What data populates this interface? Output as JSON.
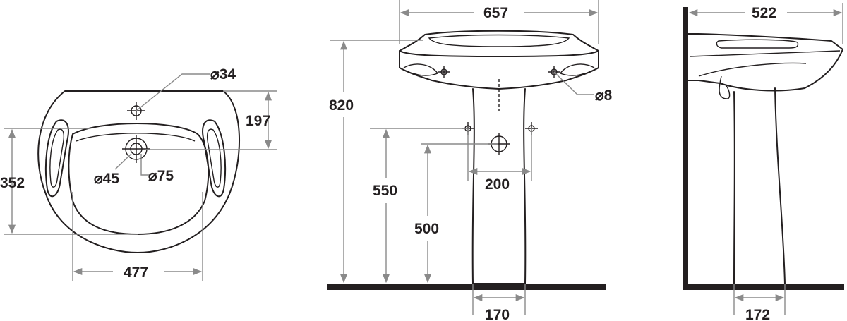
{
  "views": {
    "top": {
      "width": "477",
      "depth": "352",
      "tap_offset": "197",
      "tap_hole": "⌀34",
      "drain_hole": "⌀45",
      "drain_ring": "⌀75"
    },
    "front": {
      "overall_width": "657",
      "total_height": "820",
      "supply_height": "550",
      "waste_height": "500",
      "supply_spacing": "200",
      "fixing_hole": "⌀8",
      "pedestal_base": "170"
    },
    "side": {
      "depth": "522",
      "pedestal_base": "172"
    }
  },
  "colors": {
    "line": "#231f20",
    "dimension": "#8a8a8a",
    "floor": "#231f20"
  }
}
